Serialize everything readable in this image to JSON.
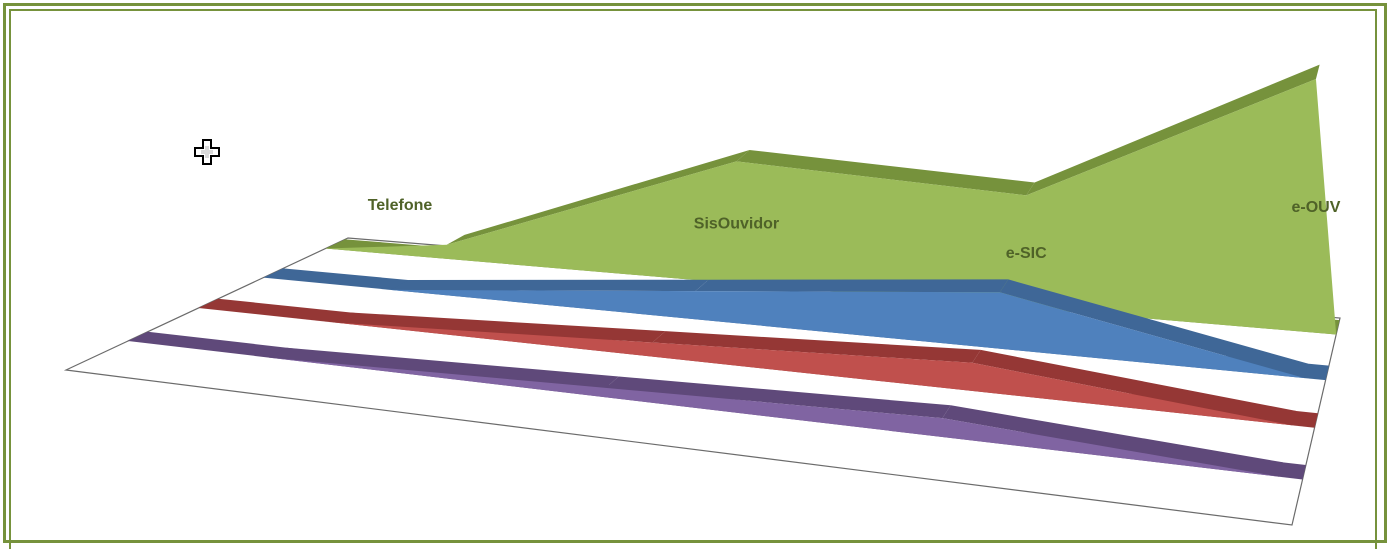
{
  "chart_data": {
    "type": "area",
    "variant": "3d",
    "categories": [
      "Telefone",
      "SisOuvidor",
      "e-SIC",
      "e-OUV"
    ],
    "series": [
      {
        "color": "#9bbb59",
        "side_color": "#76923c",
        "values": [
          0.3,
          2.6,
          2.4,
          5.4
        ]
      },
      {
        "color": "#4f81bd",
        "side_color": "#3f6797",
        "values": [
          0,
          0.6,
          1.2,
          0
        ]
      },
      {
        "color": "#c0504d",
        "side_color": "#953735",
        "values": [
          0,
          0.3,
          0.6,
          0
        ]
      },
      {
        "color": "#8064a2",
        "side_color": "#5f497a",
        "values": [
          0,
          0.2,
          0.4,
          0
        ]
      }
    ],
    "title": "",
    "legend": "none",
    "grid": false
  }
}
